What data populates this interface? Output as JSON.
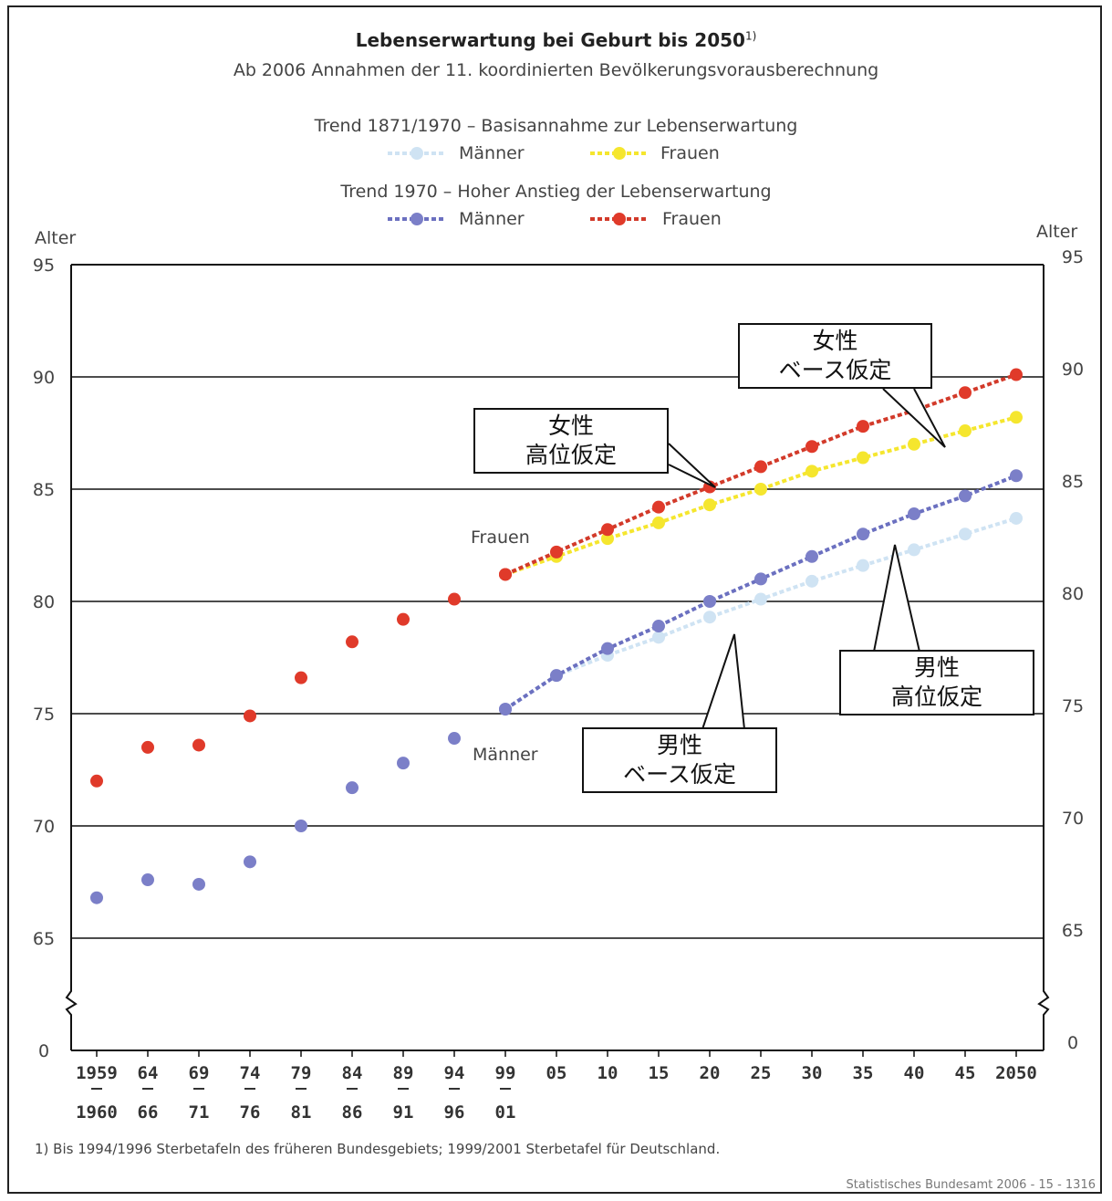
{
  "title": "Lebenserwartung bei Geburt bis 2050",
  "title_sup": "1)",
  "subtitle": "Ab 2006 Annahmen der 11. koordinierten Bevölkerungsvorausberechnung",
  "legend": {
    "trend1_heading": "Trend 1871/1970 – Basisannahme zur Lebenserwartung",
    "trend2_heading": "Trend 1970 – Hoher Anstieg der Lebenserwartung",
    "maenner": "Männer",
    "frauen": "Frauen"
  },
  "axis": {
    "left_label": "Alter",
    "right_label": "Alter"
  },
  "series_labels": {
    "frauen": "Frauen",
    "maenner": "Männer"
  },
  "callouts": {
    "female_base": [
      "女性",
      "ベース仮定"
    ],
    "female_high": [
      "女性",
      "高位仮定"
    ],
    "male_high": [
      "男性",
      "高位仮定"
    ],
    "male_base": [
      "男性",
      "ベース仮定"
    ]
  },
  "footnote": "1) Bis 1994/1996 Sterbetafeln des früheren Bundesgebiets; 1999/2001 Sterbetafel für Deutschland.",
  "source": "Statistisches Bundesamt 2006 - 15 - 1316",
  "colors": {
    "frauen_high": "#e03a2a",
    "frauen_base": "#f5e62e",
    "maenner_high": "#7b7fc8",
    "maenner_base": "#cfe3f3"
  },
  "chart_data": {
    "type": "line",
    "x_top": [
      "1959",
      "64",
      "69",
      "74",
      "79",
      "84",
      "89",
      "94",
      "99",
      "05",
      "10",
      "15",
      "20",
      "25",
      "30",
      "35",
      "40",
      "45",
      "2050"
    ],
    "x_bottom": [
      "1960",
      "66",
      "71",
      "76",
      "81",
      "86",
      "91",
      "96",
      "01"
    ],
    "y_ticks": [
      "0",
      "65",
      "70",
      "75",
      "80",
      "85",
      "90",
      "95"
    ],
    "y_axis_break": "between 0 and 65",
    "ylim": [
      0,
      95
    ],
    "historical": {
      "frauen": [
        72.0,
        73.5,
        73.6,
        74.9,
        76.6,
        78.2,
        79.2,
        80.1,
        81.2
      ],
      "maenner": [
        66.8,
        67.6,
        67.4,
        68.4,
        70.0,
        71.7,
        72.8,
        73.9,
        75.2
      ]
    },
    "series": [
      {
        "name": "Frauen",
        "legend_group": "Trend 1970 – Hoher Anstieg der Lebenserwartung",
        "x": [
          "99",
          "05",
          "10",
          "15",
          "20",
          "25",
          "30",
          "35",
          "40",
          "45",
          "2050"
        ],
        "values": [
          81.2,
          82.2,
          83.2,
          84.2,
          85.1,
          86.0,
          86.9,
          87.8,
          88.5,
          89.3,
          90.1
        ]
      },
      {
        "name": "Frauen",
        "legend_group": "Trend 1871/1970 – Basisannahme zur Lebenserwartung",
        "x": [
          "99",
          "05",
          "10",
          "15",
          "20",
          "25",
          "30",
          "35",
          "40",
          "45",
          "2050"
        ],
        "values": [
          81.2,
          82.0,
          82.8,
          83.5,
          84.3,
          85.0,
          85.8,
          86.4,
          87.0,
          87.6,
          88.2
        ]
      },
      {
        "name": "Männer",
        "legend_group": "Trend 1970 – Hoher Anstieg der Lebenserwartung",
        "x": [
          "99",
          "05",
          "10",
          "15",
          "20",
          "25",
          "30",
          "35",
          "40",
          "45",
          "2050"
        ],
        "values": [
          75.2,
          76.7,
          77.9,
          78.9,
          80.0,
          81.0,
          82.0,
          83.0,
          83.9,
          84.7,
          85.6
        ]
      },
      {
        "name": "Männer",
        "legend_group": "Trend 1871/1970 – Basisannahme zur Lebenserwartung",
        "x": [
          "99",
          "05",
          "10",
          "15",
          "20",
          "25",
          "30",
          "35",
          "40",
          "45",
          "2050"
        ],
        "values": [
          75.2,
          76.7,
          77.6,
          78.4,
          79.3,
          80.1,
          80.9,
          81.6,
          82.3,
          83.0,
          83.7
        ]
      }
    ]
  }
}
